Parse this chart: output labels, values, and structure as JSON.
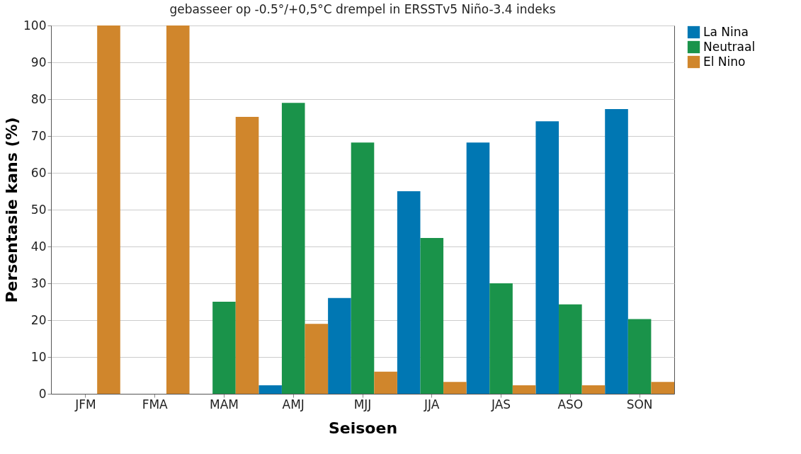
{
  "chart_data": {
    "type": "bar",
    "title": "gebasseer op -0.5°/+0,5°C drempel in ERSSTv5 Niño-3.4 indeks",
    "xlabel": "Seisoen",
    "ylabel": "Persentasie kans (%)",
    "categories": [
      "JFM",
      "FMA",
      "MAM",
      "AMJ",
      "MJJ",
      "JJA",
      "JAS",
      "ASO",
      "SON"
    ],
    "series": [
      {
        "name": "La Nina",
        "color": "#0077b3",
        "values": [
          0,
          0,
          0,
          2.3,
          26,
          55,
          68.2,
          74,
          77.3
        ]
      },
      {
        "name": "Neutraal",
        "color": "#1a934a",
        "values": [
          0,
          0,
          25,
          79,
          68.2,
          42.3,
          30,
          24.3,
          20.3
        ]
      },
      {
        "name": "El Nino",
        "color": "#d0862c",
        "values": [
          100,
          100,
          75.2,
          19,
          6,
          3.2,
          2.3,
          2.3,
          3.2
        ]
      }
    ],
    "ylim": [
      0,
      100
    ],
    "yticks": [
      0,
      10,
      20,
      30,
      40,
      50,
      60,
      70,
      80,
      90,
      100
    ],
    "grid": "y",
    "legend": "top right"
  }
}
